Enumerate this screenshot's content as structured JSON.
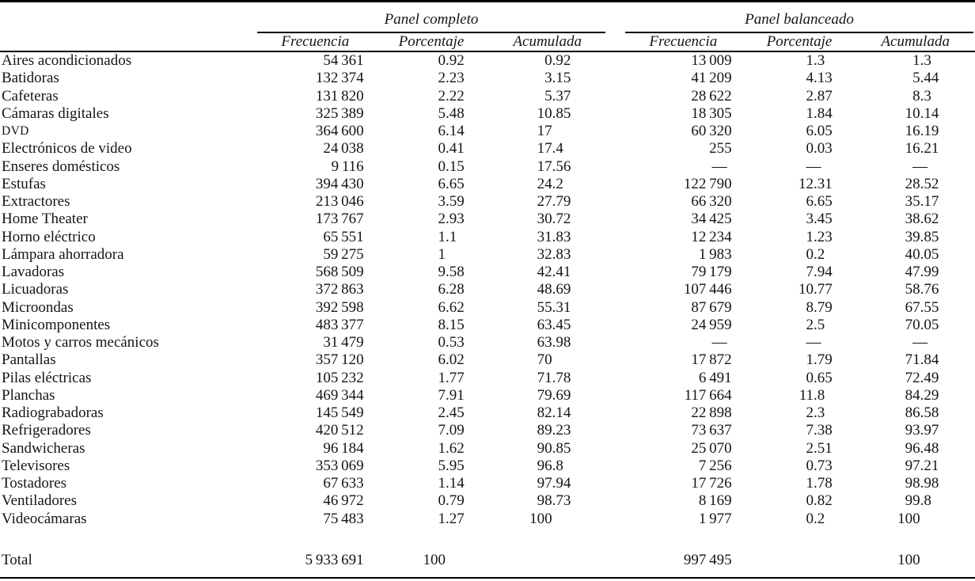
{
  "table": {
    "groups": [
      {
        "label": "Panel completo"
      },
      {
        "label": "Panel balanceado"
      }
    ],
    "sub_headers": [
      "Frecuencia",
      "Porcentaje",
      "Acumulada"
    ],
    "rows": [
      {
        "label": "Aires acondicionados",
        "completo": [
          "54361",
          "0.92",
          "0.92"
        ],
        "balanceado": [
          "13009",
          "1.3",
          "1.3"
        ]
      },
      {
        "label": "Batidoras",
        "completo": [
          "132374",
          "2.23",
          "3.15"
        ],
        "balanceado": [
          "41209",
          "4.13",
          "5.44"
        ]
      },
      {
        "label": "Cafeteras",
        "completo": [
          "131820",
          "2.22",
          "5.37"
        ],
        "balanceado": [
          "28622",
          "2.87",
          "8.3"
        ]
      },
      {
        "label": "Cámaras digitales",
        "completo": [
          "325389",
          "5.48",
          "10.85"
        ],
        "balanceado": [
          "18305",
          "1.84",
          "10.14"
        ]
      },
      {
        "label": "DVD",
        "small_caps": true,
        "completo": [
          "364600",
          "6.14",
          "17"
        ],
        "balanceado": [
          "60320",
          "6.05",
          "16.19"
        ]
      },
      {
        "label": "Electrónicos de video",
        "completo": [
          "24038",
          "0.41",
          "17.4"
        ],
        "balanceado": [
          "255",
          "0.03",
          "16.21"
        ]
      },
      {
        "label": "Enseres domésticos",
        "completo": [
          "9116",
          "0.15",
          "17.56"
        ],
        "balanceado": [
          "—",
          "—",
          "—"
        ]
      },
      {
        "label": "Estufas",
        "completo": [
          "394430",
          "6.65",
          "24.2"
        ],
        "balanceado": [
          "122790",
          "12.31",
          "28.52"
        ]
      },
      {
        "label": "Extractores",
        "completo": [
          "213046",
          "3.59",
          "27.79"
        ],
        "balanceado": [
          "66320",
          "6.65",
          "35.17"
        ]
      },
      {
        "label": "Home Theater",
        "completo": [
          "173767",
          "2.93",
          "30.72"
        ],
        "balanceado": [
          "34425",
          "3.45",
          "38.62"
        ]
      },
      {
        "label": "Horno eléctrico",
        "completo": [
          "65551",
          "1.1",
          "31.83"
        ],
        "balanceado": [
          "12234",
          "1.23",
          "39.85"
        ]
      },
      {
        "label": "Lámpara ahorradora",
        "completo": [
          "59275",
          "1",
          "32.83"
        ],
        "balanceado": [
          "1983",
          "0.2",
          "40.05"
        ]
      },
      {
        "label": "Lavadoras",
        "completo": [
          "568509",
          "9.58",
          "42.41"
        ],
        "balanceado": [
          "79179",
          "7.94",
          "47.99"
        ]
      },
      {
        "label": "Licuadoras",
        "completo": [
          "372863",
          "6.28",
          "48.69"
        ],
        "balanceado": [
          "107446",
          "10.77",
          "58.76"
        ]
      },
      {
        "label": "Microondas",
        "completo": [
          "392598",
          "6.62",
          "55.31"
        ],
        "balanceado": [
          "87679",
          "8.79",
          "67.55"
        ]
      },
      {
        "label": "Minicomponentes",
        "completo": [
          "483377",
          "8.15",
          "63.45"
        ],
        "balanceado": [
          "24959",
          "2.5",
          "70.05"
        ]
      },
      {
        "label": "Motos y carros mecánicos",
        "completo": [
          "31479",
          "0.53",
          "63.98"
        ],
        "balanceado": [
          "—",
          "—",
          "—"
        ]
      },
      {
        "label": "Pantallas",
        "completo": [
          "357120",
          "6.02",
          "70"
        ],
        "balanceado": [
          "17872",
          "1.79",
          "71.84"
        ]
      },
      {
        "label": "Pilas eléctricas",
        "completo": [
          "105232",
          "1.77",
          "71.78"
        ],
        "balanceado": [
          "6491",
          "0.65",
          "72.49"
        ]
      },
      {
        "label": "Planchas",
        "completo": [
          "469344",
          "7.91",
          "79.69"
        ],
        "balanceado": [
          "117664",
          "11.8",
          "84.29"
        ]
      },
      {
        "label": "Radiograbadoras",
        "completo": [
          "145549",
          "2.45",
          "82.14"
        ],
        "balanceado": [
          "22898",
          "2.3",
          "86.58"
        ]
      },
      {
        "label": "Refrigeradores",
        "completo": [
          "420512",
          "7.09",
          "89.23"
        ],
        "balanceado": [
          "73637",
          "7.38",
          "93.97"
        ]
      },
      {
        "label": "Sandwicheras",
        "completo": [
          "96184",
          "1.62",
          "90.85"
        ],
        "balanceado": [
          "25070",
          "2.51",
          "96.48"
        ]
      },
      {
        "label": "Televisores",
        "completo": [
          "353069",
          "5.95",
          "96.8"
        ],
        "balanceado": [
          "7256",
          "0.73",
          "97.21"
        ]
      },
      {
        "label": "Tostadores",
        "completo": [
          "67633",
          "1.14",
          "97.94"
        ],
        "balanceado": [
          "17726",
          "1.78",
          "98.98"
        ]
      },
      {
        "label": "Ventiladores",
        "completo": [
          "46972",
          "0.79",
          "98.73"
        ],
        "balanceado": [
          "8169",
          "0.82",
          "99.8"
        ]
      },
      {
        "label": "Videocámaras",
        "completo": [
          "75483",
          "1.27",
          "100"
        ],
        "balanceado": [
          "1977",
          "0.2",
          "100"
        ]
      }
    ],
    "total": {
      "label": "Total",
      "completo": [
        "5933691",
        "100",
        ""
      ],
      "balanceado": [
        "997495",
        "",
        "100"
      ]
    }
  }
}
